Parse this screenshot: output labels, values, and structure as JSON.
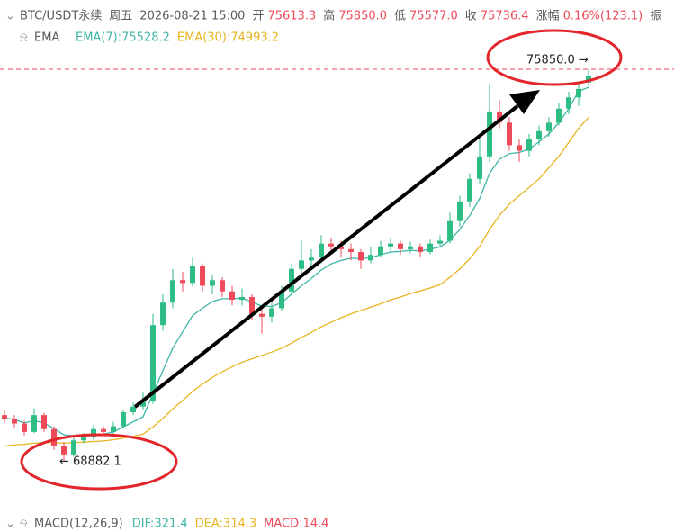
{
  "chart_data": {
    "type": "candlestick",
    "header": [
      "BTC/USDT永续",
      "周五",
      "2026-08-21 15:00"
    ],
    "quote": [
      {
        "label": "开",
        "value": "75613.3"
      },
      {
        "label": "高",
        "value": "75850.0"
      },
      {
        "label": "低",
        "value": "75577.0"
      },
      {
        "label": "收",
        "value": "75736.4"
      },
      {
        "label": "涨幅",
        "value": "0.16%(123.1)"
      },
      {
        "label": "振",
        "value": null
      }
    ],
    "indicator": "EMA",
    "legend": [
      {
        "text": "EMA(7):75528.2",
        "color": "#3db5a6"
      },
      {
        "text": "EMA(30):74993.2",
        "color": "#e8b31e"
      }
    ],
    "up_color": "#2ebd85",
    "down_color": "#ef4a5a",
    "ylim": [
      68117,
      76523
    ],
    "ohlc": [
      [
        69700,
        69780,
        69560,
        69630
      ],
      [
        69630,
        69700,
        69480,
        69550
      ],
      [
        69550,
        69600,
        69340,
        69400
      ],
      [
        69400,
        69820,
        69380,
        69700
      ],
      [
        69700,
        69740,
        69400,
        69450
      ],
      [
        69450,
        69500,
        69080,
        69150
      ],
      [
        69150,
        69220,
        68882.1,
        69000
      ],
      [
        69000,
        69300,
        68960,
        69250
      ],
      [
        69250,
        69380,
        69200,
        69300
      ],
      [
        69300,
        69520,
        69260,
        69450
      ],
      [
        69450,
        69500,
        69350,
        69400
      ],
      [
        69400,
        69580,
        69360,
        69500
      ],
      [
        69500,
        69800,
        69460,
        69750
      ],
      [
        69750,
        69920,
        69700,
        69850
      ],
      [
        69850,
        70100,
        69800,
        69950
      ],
      [
        69950,
        71500,
        69900,
        71300
      ],
      [
        71300,
        71850,
        71200,
        71700
      ],
      [
        71700,
        72300,
        71600,
        72100
      ],
      [
        72100,
        72250,
        71900,
        72050
      ],
      [
        72050,
        72500,
        71980,
        72350
      ],
      [
        72350,
        72400,
        71900,
        72000
      ],
      [
        72000,
        72200,
        71850,
        72100
      ],
      [
        72100,
        72150,
        71800,
        71900
      ],
      [
        71900,
        72000,
        71650,
        71750
      ],
      [
        71750,
        71950,
        71650,
        71800
      ],
      [
        71800,
        71850,
        71400,
        71500
      ],
      [
        71500,
        71650,
        71150,
        71450
      ],
      [
        71450,
        71700,
        71350,
        71600
      ],
      [
        71600,
        72000,
        71550,
        71900
      ],
      [
        71900,
        72400,
        71850,
        72300
      ],
      [
        72300,
        72800,
        72200,
        72450
      ],
      [
        72450,
        72650,
        72300,
        72500
      ],
      [
        72500,
        72900,
        72400,
        72750
      ],
      [
        72750,
        72850,
        72550,
        72700
      ],
      [
        72700,
        72800,
        72500,
        72650
      ],
      [
        72650,
        72750,
        72450,
        72600
      ],
      [
        72600,
        72650,
        72300,
        72450
      ],
      [
        72450,
        72700,
        72400,
        72550
      ],
      [
        72550,
        72800,
        72500,
        72700
      ],
      [
        72700,
        72850,
        72620,
        72750
      ],
      [
        72750,
        72800,
        72550,
        72650
      ],
      [
        72650,
        72780,
        72580,
        72700
      ],
      [
        72700,
        72750,
        72520,
        72600
      ],
      [
        72600,
        72820,
        72560,
        72750
      ],
      [
        72750,
        72900,
        72680,
        72800
      ],
      [
        72800,
        73300,
        72750,
        73150
      ],
      [
        73150,
        73600,
        73050,
        73500
      ],
      [
        73500,
        74000,
        73400,
        73900
      ],
      [
        73900,
        74600,
        73800,
        74300
      ],
      [
        74300,
        75600,
        74200,
        75100
      ],
      [
        75100,
        75300,
        74800,
        74900
      ],
      [
        74900,
        75000,
        74400,
        74500
      ],
      [
        74500,
        74600,
        74200,
        74400
      ],
      [
        74400,
        74700,
        74300,
        74600
      ],
      [
        74600,
        74850,
        74500,
        74750
      ],
      [
        74750,
        75000,
        74650,
        74900
      ],
      [
        74900,
        75250,
        74850,
        75150
      ],
      [
        75150,
        75450,
        75050,
        75350
      ],
      [
        75350,
        75600,
        75200,
        75500
      ],
      [
        75613.3,
        75850,
        75577,
        75736.4
      ]
    ],
    "ema_lines": [
      {
        "color": "#3db5a6",
        "values": [
          69650,
          69620,
          69560,
          69600,
          69560,
          69460,
          69350,
          69330,
          69320,
          69350,
          69360,
          69400,
          69490,
          69580,
          69670,
          70080,
          70490,
          70890,
          71180,
          71470,
          71600,
          71720,
          71770,
          71770,
          71780,
          71710,
          71640,
          71630,
          71700,
          71850,
          72000,
          72130,
          72280,
          72390,
          72450,
          72490,
          72480,
          72500,
          72550,
          72600,
          72610,
          72630,
          72620,
          72650,
          72690,
          72810,
          73000,
          73250,
          73550,
          74000,
          74250,
          74350,
          74370,
          74430,
          74560,
          74700,
          74900,
          75150,
          75459,
          75528.2
        ]
      },
      {
        "color": "#e8b31e",
        "values": [
          69150,
          69170,
          69180,
          69200,
          69210,
          69210,
          69200,
          69210,
          69220,
          69230,
          69240,
          69260,
          69290,
          69320,
          69360,
          69490,
          69640,
          69810,
          69960,
          70120,
          70250,
          70370,
          70470,
          70560,
          70640,
          70700,
          70760,
          70820,
          70890,
          70980,
          71080,
          71170,
          71270,
          71350,
          71430,
          71500,
          71560,
          71620,
          71680,
          71750,
          71800,
          71860,
          71910,
          71960,
          72020,
          72150,
          72300,
          72480,
          72700,
          73000,
          73250,
          73450,
          73600,
          73750,
          73900,
          74100,
          74300,
          74550,
          74800,
          74993.2
        ]
      }
    ],
    "annotations": [
      "75850.0 →",
      "← 68882.1"
    ],
    "macd": {
      "title": "MACD(12,26,9)",
      "items": [
        {
          "text": "DIF:321.4",
          "color": "#3db5a6"
        },
        {
          "text": "DEA:314.3",
          "color": "#e8b31e"
        },
        {
          "text": "MACD:14.4",
          "color": "#ef4a5a"
        }
      ]
    }
  }
}
